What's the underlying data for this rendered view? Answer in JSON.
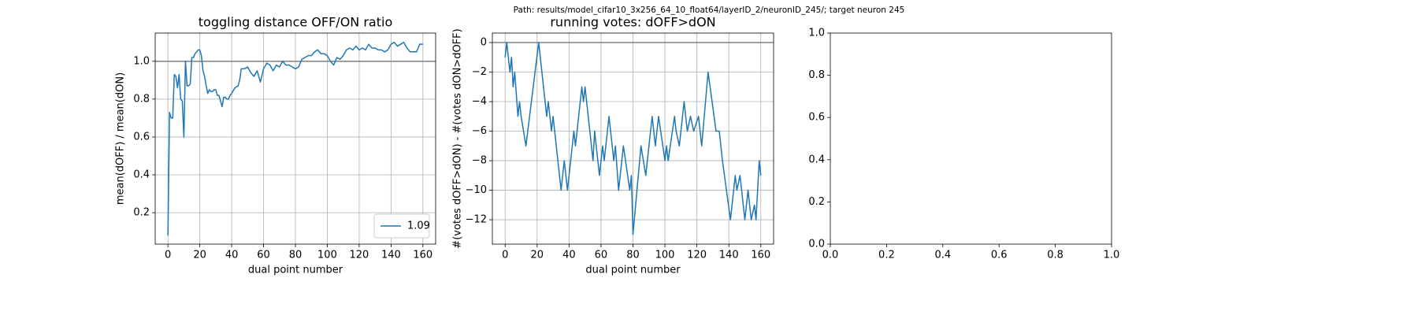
{
  "title": "Path: results/model_cifar10_3x256_64_10_float64/layerID_2/neuronID_245/; target neuron 245",
  "chart_data": [
    {
      "type": "line",
      "title": "toggling distance OFF/ON ratio",
      "xlabel": "dual point number",
      "ylabel": "mean(dOFF) / mean(dON)",
      "xlim": [
        -8,
        168
      ],
      "ylim": [
        0.034,
        1.149
      ],
      "xticks": [
        0,
        20,
        40,
        60,
        80,
        100,
        120,
        140,
        160
      ],
      "yticks": [
        0.2,
        0.4,
        0.6,
        0.8,
        {
          "value": 1,
          "label": "1.0"
        }
      ],
      "grid": true,
      "legend": "lower right",
      "hline": {
        "y": 1,
        "color": "#808080"
      },
      "x": [
        0,
        1,
        2,
        3,
        4,
        5,
        6,
        7,
        8,
        9,
        10,
        11,
        12,
        13,
        14,
        15,
        16,
        17,
        18,
        19,
        20,
        21,
        22,
        23,
        24,
        25,
        26,
        27,
        28,
        29,
        30,
        31,
        32,
        33,
        34,
        35,
        36,
        37,
        38,
        39,
        40,
        42,
        44,
        45,
        46,
        48,
        50,
        52,
        54,
        56,
        58,
        60,
        62,
        64,
        66,
        68,
        70,
        72,
        74,
        76,
        78,
        80,
        82,
        84,
        86,
        88,
        90,
        92,
        94,
        96,
        98,
        100,
        102,
        104,
        106,
        108,
        110,
        112,
        114,
        116,
        118,
        120,
        122,
        124,
        126,
        128,
        130,
        132,
        134,
        136,
        138,
        140,
        142,
        144,
        146,
        148,
        150,
        152,
        154,
        156,
        158,
        160
      ],
      "series": [
        {
          "name": "1.09",
          "color": "#1f77b4",
          "values": [
            0.08,
            0.73,
            0.7,
            0.7,
            0.93,
            0.92,
            0.86,
            0.93,
            0.8,
            0.79,
            0.6,
            1.0,
            0.87,
            0.87,
            0.88,
            1.02,
            1.02,
            1.04,
            1.05,
            1.06,
            1.06,
            1.03,
            0.95,
            0.92,
            0.87,
            0.83,
            0.85,
            0.84,
            0.84,
            0.85,
            0.85,
            0.82,
            0.82,
            0.79,
            0.76,
            0.81,
            0.81,
            0.8,
            0.8,
            0.82,
            0.83,
            0.86,
            0.87,
            0.9,
            0.96,
            0.96,
            0.97,
            0.94,
            0.92,
            0.95,
            0.89,
            0.96,
            0.99,
            0.98,
            0.95,
            0.98,
            0.97,
            1.0,
            0.98,
            0.98,
            0.97,
            0.96,
            0.97,
            1.01,
            1.02,
            1.03,
            1.03,
            1.05,
            1.06,
            1.04,
            1.04,
            1.03,
            1.0,
            0.98,
            1.02,
            1.01,
            1.03,
            1.06,
            1.07,
            1.06,
            1.08,
            1.06,
            1.07,
            1.06,
            1.09,
            1.07,
            1.07,
            1.06,
            1.06,
            1.05,
            1.06,
            1.09,
            1.1,
            1.08,
            1.09,
            1.1,
            1.07,
            1.05,
            1.05,
            1.05,
            1.09,
            1.09
          ]
        }
      ]
    },
    {
      "type": "line",
      "title": "running votes: dOFF>dON",
      "xlabel": "dual point number",
      "ylabel": "#(votes dOFF>dON) - #(votes dON>dOFF)",
      "xlim": [
        -8,
        168
      ],
      "ylim": [
        -13.65,
        0.64
      ],
      "xticks": [
        0,
        20,
        40,
        60,
        80,
        100,
        120,
        140,
        160
      ],
      "yticks": [
        {
          "value": -12,
          "label": "−12"
        },
        {
          "value": -10,
          "label": "−10"
        },
        {
          "value": -8,
          "label": "−8"
        },
        {
          "value": -6,
          "label": "−6"
        },
        {
          "value": -4,
          "label": "−4"
        },
        {
          "value": -2,
          "label": "−2"
        },
        0
      ],
      "grid": true,
      "hline": {
        "y": 0,
        "color": "#808080"
      },
      "x": [
        0,
        1,
        3,
        4,
        5,
        6,
        8,
        9,
        10,
        13,
        21,
        26,
        27,
        29,
        30,
        35,
        36,
        37,
        39,
        40,
        43,
        44,
        48,
        49,
        50,
        55,
        56,
        57,
        59,
        61,
        62,
        65,
        66,
        68,
        69,
        71,
        72,
        74,
        78,
        79,
        80,
        85,
        88,
        92,
        94,
        96,
        100,
        101,
        102,
        106,
        107,
        109,
        112,
        114,
        116,
        118,
        121,
        123,
        127,
        132,
        134,
        136,
        141,
        144,
        145,
        147,
        150,
        152,
        154,
        156,
        157,
        159,
        160
      ],
      "series": [
        {
          "color": "#1f77b4",
          "values": [
            -1,
            0,
            -2,
            -1,
            -3,
            -2,
            -5,
            -4,
            -5,
            -7,
            0,
            -5,
            -4,
            -6,
            -5,
            -10,
            -9,
            -8,
            -10,
            -9,
            -6,
            -7,
            -3,
            -4,
            -3,
            -8,
            -6,
            -7,
            -9,
            -7,
            -8,
            -5,
            -6,
            -8,
            -7,
            -10,
            -9,
            -7,
            -10,
            -9,
            -13,
            -7,
            -9,
            -5,
            -7,
            -5,
            -8,
            -7,
            -8,
            -5,
            -6,
            -7,
            -4,
            -6,
            -5,
            -6,
            -5,
            -7,
            -2,
            -6,
            -6,
            -8,
            -12,
            -9,
            -10,
            -9,
            -12,
            -10,
            -12,
            -11,
            -12,
            -8,
            -9
          ]
        }
      ]
    },
    {
      "type": "empty",
      "xlim": [
        0,
        1
      ],
      "ylim": [
        0,
        1
      ],
      "xticks": [
        {
          "value": 0,
          "label": "0.0"
        },
        {
          "value": 0.2,
          "label": "0.2"
        },
        {
          "value": 0.4,
          "label": "0.4"
        },
        {
          "value": 0.6,
          "label": "0.6"
        },
        {
          "value": 0.8,
          "label": "0.8"
        },
        {
          "value": 1,
          "label": "1.0"
        }
      ],
      "yticks": [
        {
          "value": 0,
          "label": "0.0"
        },
        {
          "value": 0.2,
          "label": "0.2"
        },
        {
          "value": 0.4,
          "label": "0.4"
        },
        {
          "value": 0.6,
          "label": "0.6"
        },
        {
          "value": 0.8,
          "label": "0.8"
        },
        {
          "value": 1,
          "label": "1.0"
        }
      ],
      "grid": false
    }
  ]
}
